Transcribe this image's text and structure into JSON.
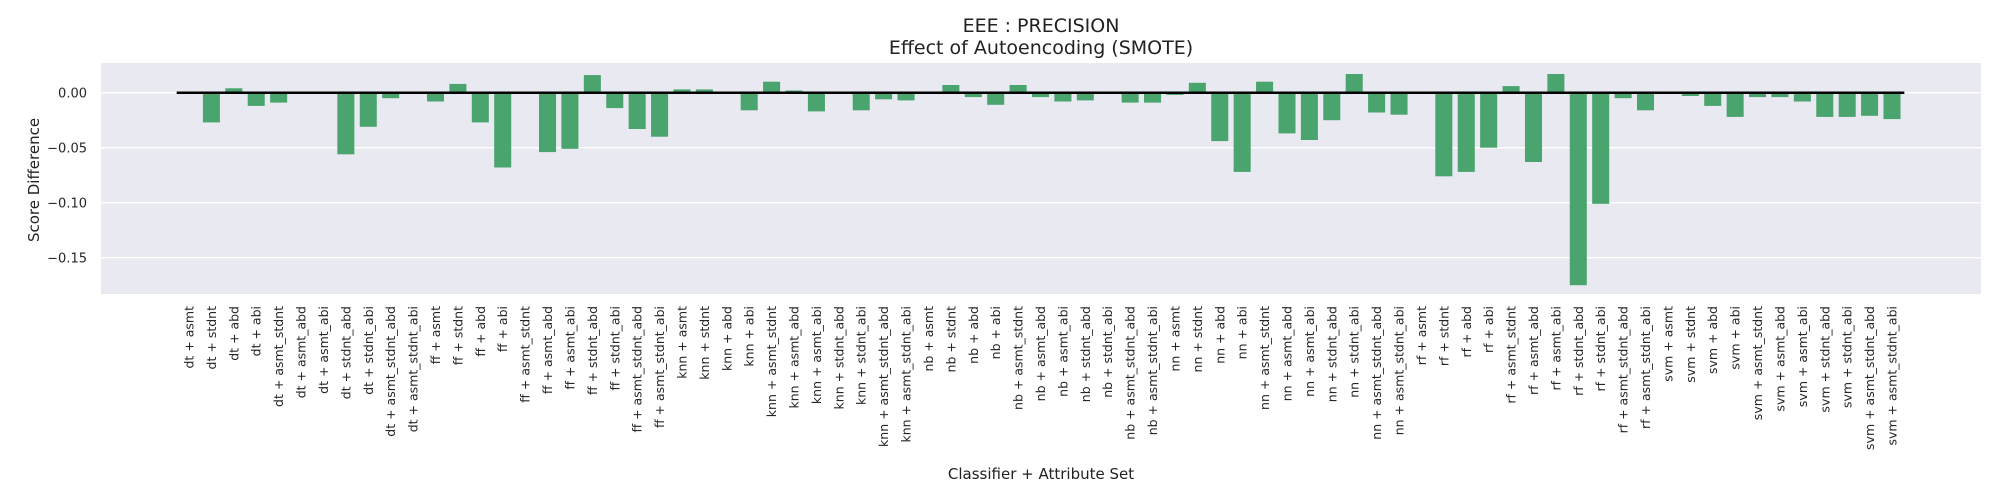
{
  "chart_data": {
    "type": "bar",
    "title": "EEE : PRECISION",
    "subtitle": "Effect of Autoencoding (SMOTE)",
    "xlabel": "Classifier + Attribute Set",
    "ylabel": "Score Difference",
    "ylim": [
      -0.183,
      0.027
    ],
    "yticks": [
      0.0,
      -0.05,
      -0.1,
      -0.15
    ],
    "ytick_labels": [
      "0.00",
      "−0.05",
      "−0.10",
      "−0.15"
    ],
    "grid": true,
    "bar_color": "#4aa46e",
    "background_color": "#e9e9f1",
    "categories": [
      "dt + asmt",
      "dt + stdnt",
      "dt + abd",
      "dt + abi",
      "dt + asmt_stdnt",
      "dt + asmt_abd",
      "dt + asmt_abi",
      "dt + stdnt_abd",
      "dt + stdnt_abi",
      "dt + asmt_stdnt_abd",
      "dt + asmt_stdnt_abi",
      "ff + asmt",
      "ff + stdnt",
      "ff + abd",
      "ff + abi",
      "ff + asmt_stdnt",
      "ff + asmt_abd",
      "ff + asmt_abi",
      "ff + stdnt_abd",
      "ff + stdnt_abi",
      "ff + asmt_stdnt_abd",
      "ff + asmt_stdnt_abi",
      "knn + asmt",
      "knn + stdnt",
      "knn + abd",
      "knn + abi",
      "knn + asmt_stdnt",
      "knn + asmt_abd",
      "knn + asmt_abi",
      "knn + stdnt_abd",
      "knn + stdnt_abi",
      "knn + asmt_stdnt_abd",
      "knn + asmt_stdnt_abi",
      "nb + asmt",
      "nb + stdnt",
      "nb + abd",
      "nb + abi",
      "nb + asmt_stdnt",
      "nb + asmt_abd",
      "nb + asmt_abi",
      "nb + stdnt_abd",
      "nb + stdnt_abi",
      "nb + asmt_stdnt_abd",
      "nb + asmt_stdnt_abi",
      "nn + asmt",
      "nn + stdnt",
      "nn + abd",
      "nn + abi",
      "nn + asmt_stdnt",
      "nn + asmt_abd",
      "nn + asmt_abi",
      "nn + stdnt_abd",
      "nn + stdnt_abi",
      "nn + asmt_stdnt_abd",
      "nn + asmt_stdnt_abi",
      "rf + asmt",
      "rf + stdnt",
      "rf + abd",
      "rf + abi",
      "rf + asmt_stdnt",
      "rf + asmt_abd",
      "rf + asmt_abi",
      "rf + stdnt_abd",
      "rf + stdnt_abi",
      "rf + asmt_stdnt_abd",
      "rf + asmt_stdnt_abi",
      "svm + asmt",
      "svm + stdnt",
      "svm + abd",
      "svm + abi",
      "svm + asmt_stdnt",
      "svm + asmt_abd",
      "svm + asmt_abi",
      "svm + stdnt_abd",
      "svm + stdnt_abi",
      "svm + asmt_stdnt_abd",
      "svm + asmt_stdnt_abi"
    ],
    "values": [
      0.0,
      -0.027,
      0.004,
      -0.012,
      -0.009,
      0.0,
      0.0,
      -0.056,
      -0.031,
      -0.005,
      0.0,
      -0.008,
      0.008,
      -0.027,
      -0.068,
      0.0,
      -0.054,
      -0.051,
      0.016,
      -0.014,
      -0.033,
      -0.04,
      0.003,
      0.003,
      0.0,
      -0.016,
      0.01,
      0.002,
      -0.017,
      0.0,
      -0.016,
      -0.006,
      -0.007,
      0.0,
      0.007,
      -0.004,
      -0.011,
      0.007,
      -0.004,
      -0.008,
      -0.007,
      0.0,
      -0.009,
      -0.009,
      -0.002,
      0.009,
      -0.044,
      -0.072,
      0.01,
      -0.037,
      -0.043,
      -0.025,
      0.017,
      -0.018,
      -0.02,
      0.0,
      -0.076,
      -0.072,
      -0.05,
      0.006,
      -0.063,
      0.017,
      -0.175,
      -0.101,
      -0.005,
      -0.016,
      0.0,
      -0.003,
      -0.012,
      -0.022,
      -0.004,
      -0.004,
      -0.008,
      -0.022,
      -0.022,
      -0.021,
      -0.024
    ]
  }
}
